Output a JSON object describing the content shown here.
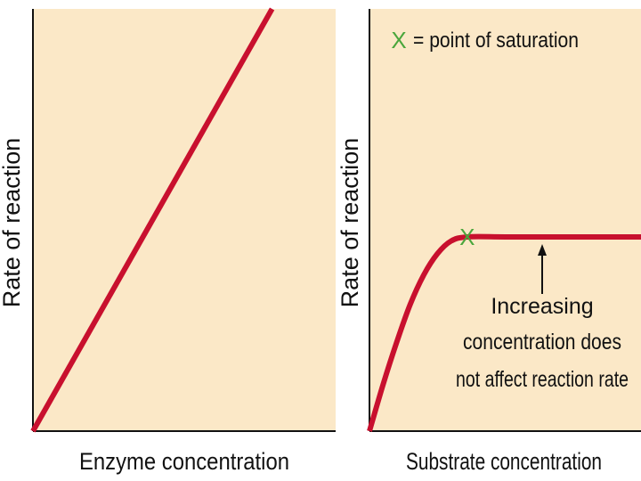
{
  "chart_data": [
    {
      "type": "line",
      "xlabel": "Enzyme concentration",
      "ylabel": "Rate of reaction",
      "xlim": [
        0,
        1
      ],
      "ylim": [
        0,
        1
      ],
      "series": [
        {
          "x": [
            0,
            0.79
          ],
          "y": [
            0,
            1.0
          ]
        }
      ]
    },
    {
      "type": "line",
      "xlabel": "Substrate concentration",
      "ylabel": "Rate of reaction",
      "xlim": [
        0,
        1
      ],
      "ylim": [
        0,
        1
      ],
      "legend_text": "= point of saturation",
      "legend_marker": "X",
      "saturation_point": {
        "x": 0.36,
        "y": 0.46
      },
      "annotation": [
        "Increasing",
        "concentration does",
        "not affect reaction rate"
      ],
      "series": [
        {
          "x": [
            0,
            0.05,
            0.1,
            0.15,
            0.2,
            0.25,
            0.3,
            0.36,
            0.5,
            0.7,
            1.0
          ],
          "y": [
            0,
            0.11,
            0.21,
            0.3,
            0.37,
            0.42,
            0.45,
            0.46,
            0.46,
            0.46,
            0.46
          ]
        }
      ]
    }
  ],
  "colors": {
    "plot_bg": "#fbe8c7",
    "curve": "#c8102e",
    "marker": "#4aa63c",
    "axis": "#111111"
  }
}
